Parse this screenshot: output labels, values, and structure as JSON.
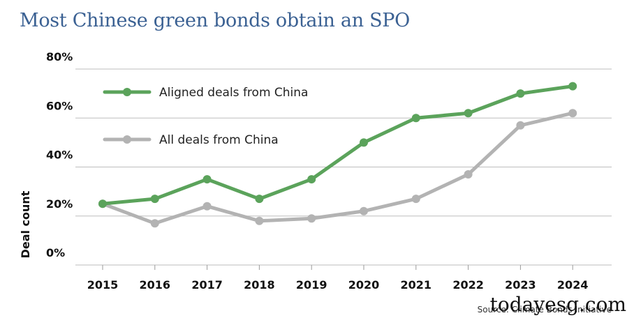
{
  "chart_data": {
    "type": "line",
    "title": "Most Chinese green bonds obtain an SPO",
    "ylabel": "Deal count",
    "xlabel": "",
    "x": [
      "2015",
      "2016",
      "2017",
      "2018",
      "2019",
      "2020",
      "2021",
      "2022",
      "2023",
      "2024"
    ],
    "yticks": [
      "0%",
      "20%",
      "40%",
      "60%",
      "80%"
    ],
    "ylim": [
      0,
      80
    ],
    "grid": true,
    "legend_position": "top-left",
    "series": [
      {
        "name": "Aligned deals from China",
        "color": "#5ba35b",
        "values": [
          25,
          27,
          35,
          27,
          35,
          50,
          60,
          62,
          70,
          73
        ]
      },
      {
        "name": "All deals from China",
        "color": "#b3b3b3",
        "values": [
          25,
          17,
          24,
          18,
          19,
          22,
          27,
          37,
          57,
          62
        ]
      }
    ],
    "source": "Source: Climate Bonds Initiative"
  },
  "watermark": "todayesg.com"
}
